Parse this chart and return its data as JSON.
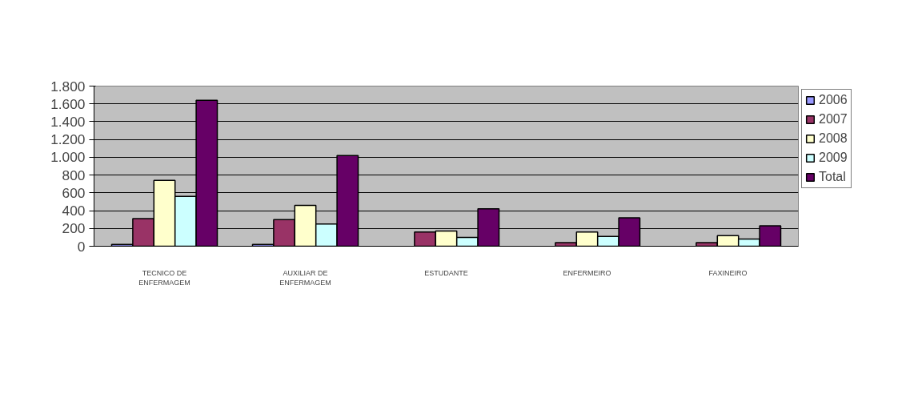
{
  "chart_data": {
    "type": "bar",
    "categories": [
      "TECNICO DE ENFERMAGEM",
      "AUXILIAR DE ENFERMAGEM",
      "ESTUDANTE",
      "ENFERMEIRO",
      "FAXINEIRO"
    ],
    "series": [
      {
        "name": "2006",
        "color": "#9999ff",
        "values": [
          20,
          20,
          null,
          null,
          null
        ]
      },
      {
        "name": "2007",
        "color": "#993366",
        "values": [
          310,
          300,
          160,
          40,
          40
        ]
      },
      {
        "name": "2008",
        "color": "#ffffcc",
        "values": [
          740,
          460,
          170,
          160,
          120
        ]
      },
      {
        "name": "2009",
        "color": "#ccffff",
        "values": [
          560,
          250,
          100,
          110,
          80
        ]
      },
      {
        "name": "Total",
        "color": "#660066",
        "values": [
          1640,
          1020,
          420,
          320,
          230
        ]
      }
    ],
    "ylim": [
      0,
      1800
    ],
    "yticks": [
      0,
      200,
      400,
      600,
      800,
      {
        "value": 1000,
        "label": "1.000"
      },
      {
        "value": 1200,
        "label": "1.200"
      },
      {
        "value": 1400,
        "label": "1.400"
      },
      {
        "value": 1600,
        "label": "1.600"
      },
      {
        "value": 1800,
        "label": "1.800"
      }
    ],
    "grid": "y",
    "legend": "right"
  }
}
